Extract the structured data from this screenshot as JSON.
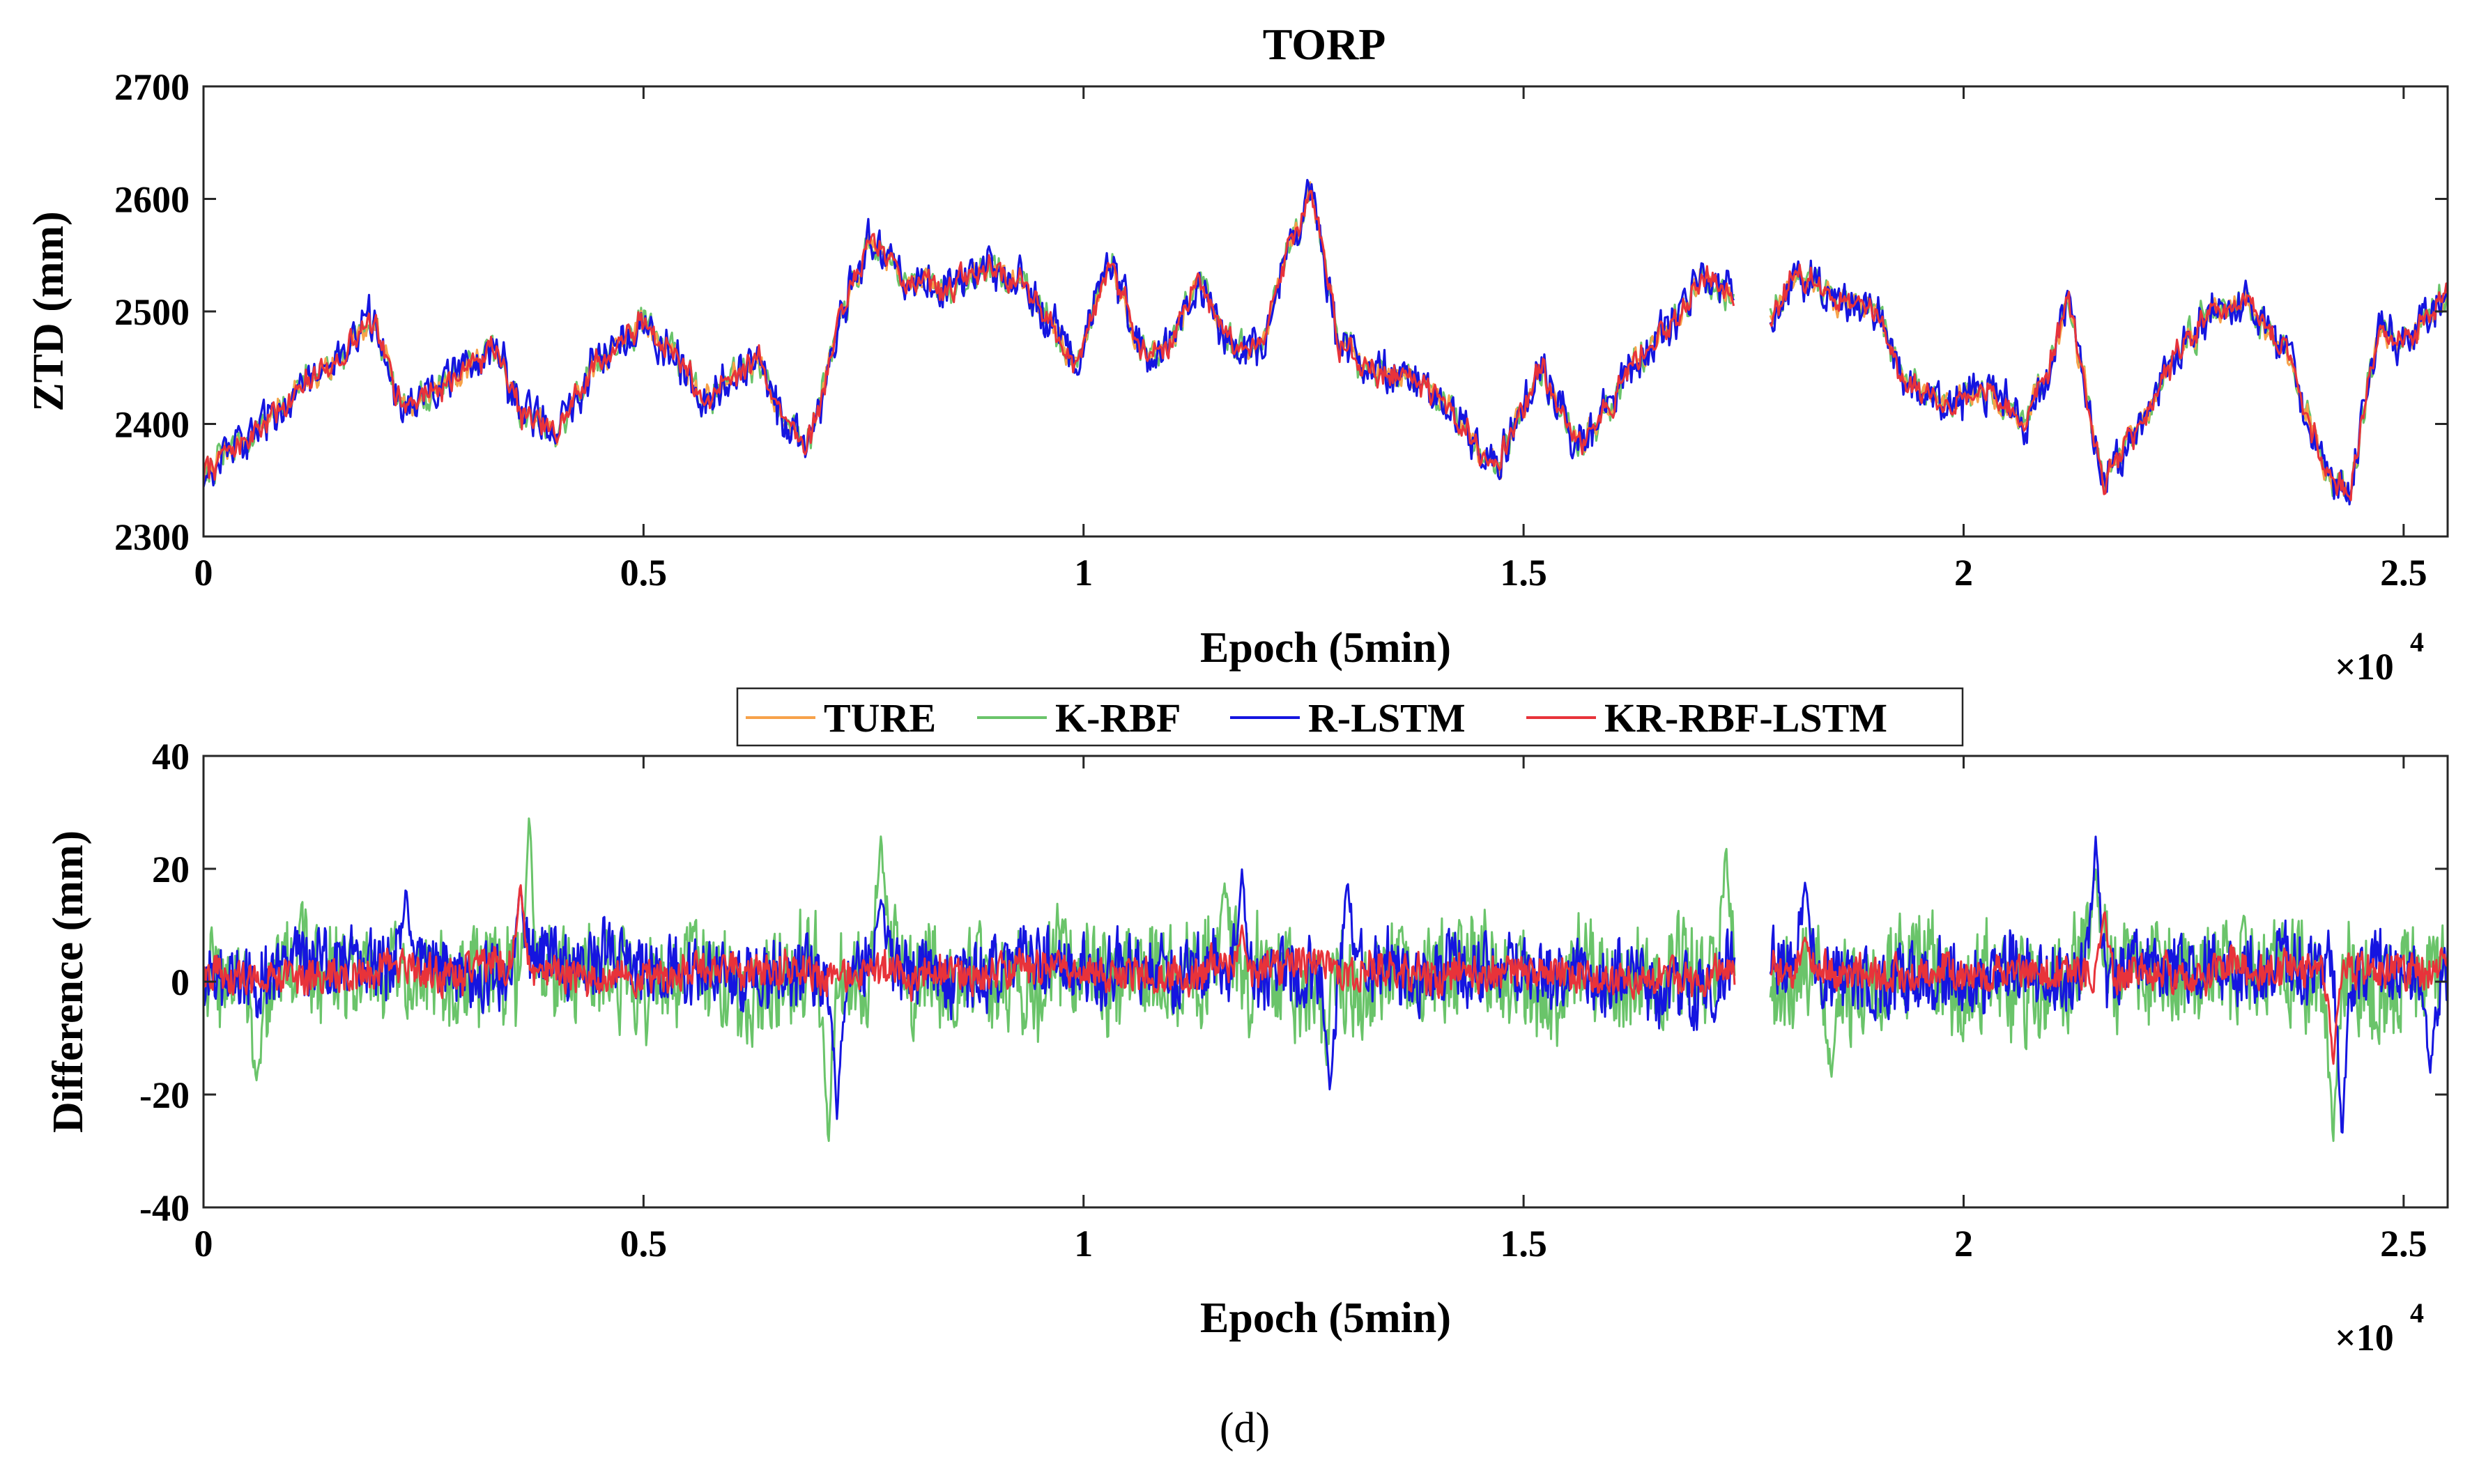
{
  "caption": "(d)",
  "legend": {
    "entries": [
      {
        "name": "TURE",
        "color": "#F7A24A"
      },
      {
        "name": "K-RBF",
        "color": "#6AC46A"
      },
      {
        "name": "R-LSTM",
        "color": "#1515E0"
      },
      {
        "name": "KR-RBF-LSTM",
        "color": "#E8333A"
      }
    ]
  },
  "chart_data": [
    {
      "type": "line",
      "title": "TORP",
      "xlabel": "Epoch (5min)",
      "ylabel": "ZTD (mm)",
      "x_exponent_base": "×10",
      "x_exponent_power": "4",
      "xlim": [
        0,
        25500
      ],
      "ylim": [
        2300,
        2700
      ],
      "xticks": [
        0,
        5000,
        10000,
        15000,
        20000,
        25000
      ],
      "xtick_labels": [
        "0",
        "0.5",
        "1",
        "1.5",
        "2",
        "2.5"
      ],
      "yticks": [
        2300,
        2400,
        2500,
        2600,
        2700
      ],
      "ytick_labels": [
        "2300",
        "2400",
        "2500",
        "2600",
        "2700"
      ],
      "gap": [
        17400,
        17800
      ],
      "keypoints_x": [
        0,
        600,
        1000,
        1500,
        1900,
        2300,
        2600,
        3000,
        3300,
        3600,
        3800,
        4000,
        4400,
        5000,
        5400,
        5700,
        6000,
        6300,
        6600,
        6900,
        7300,
        7600,
        8000,
        8400,
        9000,
        9500,
        9900,
        10300,
        10700,
        11000,
        11300,
        11700,
        12000,
        12300,
        12600,
        12900,
        13300,
        13700,
        14000,
        14400,
        14700,
        15200,
        15600,
        16000,
        16300,
        16700,
        17000,
        17350,
        17800,
        18100,
        18500,
        19000,
        19300,
        19800,
        20300,
        20700,
        21200,
        21600,
        22000,
        22400,
        22800,
        23200,
        23700,
        24100,
        24400,
        24700,
        25100,
        25500
      ],
      "keypoints_y": [
        2355,
        2395,
        2425,
        2455,
        2490,
        2415,
        2430,
        2450,
        2470,
        2410,
        2400,
        2390,
        2450,
        2490,
        2460,
        2420,
        2440,
        2460,
        2400,
        2390,
        2510,
        2560,
        2530,
        2520,
        2540,
        2510,
        2450,
        2550,
        2460,
        2470,
        2530,
        2470,
        2465,
        2550,
        2600,
        2470,
        2450,
        2440,
        2430,
        2390,
        2365,
        2450,
        2380,
        2420,
        2460,
        2490,
        2530,
        2520,
        2490,
        2540,
        2510,
        2500,
        2440,
        2420,
        2430,
        2400,
        2500,
        2350,
        2400,
        2460,
        2500,
        2510,
        2460,
        2360,
        2340,
        2480,
        2475,
        2520
      ],
      "series": [
        {
          "name": "TURE",
          "color": "#F7A24A",
          "noise_amplitude": 4
        },
        {
          "name": "K-RBF",
          "color": "#6AC46A",
          "noise_amplitude": 6
        },
        {
          "name": "R-LSTM",
          "color": "#1515E0",
          "noise_amplitude": 9
        },
        {
          "name": "KR-RBF-LSTM",
          "color": "#E8333A",
          "noise_amplitude": 4
        }
      ]
    },
    {
      "type": "line",
      "title": "",
      "xlabel": "Epoch (5min)",
      "ylabel": "Difference (mm)",
      "x_exponent_base": "×10",
      "x_exponent_power": "4",
      "xlim": [
        0,
        25500
      ],
      "ylim": [
        -40,
        40
      ],
      "xticks": [
        0,
        5000,
        10000,
        15000,
        20000,
        25000
      ],
      "xtick_labels": [
        "0",
        "0.5",
        "1",
        "1.5",
        "2",
        "2.5"
      ],
      "yticks": [
        -40,
        -20,
        0,
        20,
        40
      ],
      "ytick_labels": [
        "-40",
        "-20",
        "0",
        "20",
        "40"
      ],
      "gap": [
        17400,
        17800
      ],
      "series": [
        {
          "name": "K-RBF",
          "color": "#6AC46A",
          "amplitude": 9,
          "peak_x": [
            600,
            3700,
            7100,
            7700,
            11600,
            17300,
            18500,
            21500,
            24200
          ],
          "peak_y": [
            -18,
            30,
            -30,
            27,
            18,
            25,
            -17,
            20,
            -29
          ]
        },
        {
          "name": "R-LSTM",
          "color": "#1515E0",
          "amplitude": 6,
          "peak_x": [
            2300,
            3600,
            7200,
            7700,
            11800,
            12800,
            13000,
            18200,
            21500,
            24300,
            25300
          ],
          "peak_y": [
            17,
            17,
            -25,
            15,
            20,
            -20,
            18,
            18,
            26,
            -29,
            -17
          ]
        },
        {
          "name": "KR-RBF-LSTM",
          "color": "#E8333A",
          "amplitude": 3,
          "peak_x": [
            3600,
            11800,
            18200,
            21600,
            24200
          ],
          "peak_y": [
            18,
            10,
            8,
            13,
            -15
          ]
        }
      ]
    }
  ]
}
